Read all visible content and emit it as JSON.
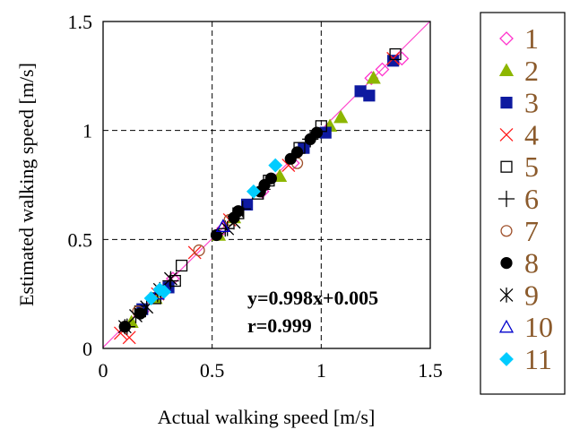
{
  "chart_data": {
    "type": "scatter",
    "xlabel": "Actual walking speed [m/s]",
    "ylabel": "Estimated walking speed [m/s]",
    "xlim": [
      0,
      1.5
    ],
    "ylim": [
      0,
      1.5
    ],
    "xticks": [
      "0",
      "0.5",
      "1",
      "1.5"
    ],
    "yticks": [
      "0",
      "0.5",
      "1",
      "1.5"
    ],
    "grid": "dashed",
    "legend_position": "right",
    "annotations": [
      "y=0.998x+0.005",
      "r=0.999"
    ],
    "fit_line": {
      "slope": 0.998,
      "intercept": 0.005,
      "color": "#ff44cc"
    },
    "series": [
      {
        "name": "1",
        "marker": "diamond-open",
        "color": "#ff33cc",
        "points": [
          [
            1.37,
            1.33
          ],
          [
            1.28,
            1.28
          ],
          [
            1.23,
            1.24
          ],
          [
            0.87,
            0.85
          ],
          [
            0.73,
            0.72
          ],
          [
            0.55,
            0.55
          ],
          [
            0.32,
            0.32
          ],
          [
            0.18,
            0.17
          ]
        ]
      },
      {
        "name": "2",
        "marker": "triangle-filled",
        "color": "#8db600",
        "points": [
          [
            1.24,
            1.24
          ],
          [
            1.09,
            1.06
          ],
          [
            1.04,
            1.02
          ],
          [
            0.81,
            0.79
          ],
          [
            0.6,
            0.6
          ],
          [
            0.53,
            0.52
          ],
          [
            0.24,
            0.23
          ],
          [
            0.13,
            0.12
          ]
        ]
      },
      {
        "name": "3",
        "marker": "square-filled",
        "color": "#0e1aa0",
        "points": [
          [
            1.33,
            1.32
          ],
          [
            1.22,
            1.16
          ],
          [
            1.18,
            1.18
          ],
          [
            1.02,
            0.99
          ],
          [
            0.92,
            0.92
          ],
          [
            0.66,
            0.66
          ],
          [
            0.3,
            0.28
          ],
          [
            0.18,
            0.18
          ]
        ]
      },
      {
        "name": "4",
        "marker": "x",
        "color": "#ff1a1a",
        "points": [
          [
            1.33,
            1.33
          ],
          [
            0.85,
            0.84
          ],
          [
            0.58,
            0.59
          ],
          [
            0.42,
            0.44
          ],
          [
            0.25,
            0.25
          ],
          [
            0.12,
            0.05
          ],
          [
            0.08,
            0.07
          ]
        ]
      },
      {
        "name": "5",
        "marker": "square-open",
        "color": "#000000",
        "points": [
          [
            1.34,
            1.35
          ],
          [
            1.0,
            1.02
          ],
          [
            0.9,
            0.92
          ],
          [
            0.76,
            0.77
          ],
          [
            0.71,
            0.71
          ],
          [
            0.62,
            0.62
          ],
          [
            0.36,
            0.38
          ],
          [
            0.33,
            0.31
          ],
          [
            0.24,
            0.23
          ],
          [
            0.17,
            0.17
          ]
        ]
      },
      {
        "name": "6",
        "marker": "plus",
        "color": "#000000",
        "points": [
          [
            0.95,
            0.96
          ],
          [
            0.73,
            0.73
          ],
          [
            0.64,
            0.64
          ],
          [
            0.56,
            0.55
          ],
          [
            0.31,
            0.31
          ],
          [
            0.25,
            0.25
          ],
          [
            0.11,
            0.1
          ]
        ]
      },
      {
        "name": "7",
        "marker": "circle-open",
        "color": "#a0522d",
        "points": [
          [
            0.89,
            0.85
          ],
          [
            0.58,
            0.59
          ],
          [
            0.44,
            0.45
          ],
          [
            0.16,
            0.17
          ],
          [
            0.1,
            0.1
          ]
        ]
      },
      {
        "name": "8",
        "marker": "circle-filled",
        "color": "#000000",
        "points": [
          [
            0.98,
            0.99
          ],
          [
            0.95,
            0.96
          ],
          [
            0.89,
            0.9
          ],
          [
            0.86,
            0.87
          ],
          [
            0.77,
            0.78
          ],
          [
            0.74,
            0.75
          ],
          [
            0.72,
            0.72
          ],
          [
            0.62,
            0.63
          ],
          [
            0.6,
            0.6
          ],
          [
            0.52,
            0.52
          ],
          [
            0.17,
            0.16
          ],
          [
            0.1,
            0.1
          ]
        ]
      },
      {
        "name": "9",
        "marker": "asterisk",
        "color": "#000000",
        "points": [
          [
            0.6,
            0.58
          ],
          [
            0.57,
            0.55
          ],
          [
            0.31,
            0.32
          ],
          [
            0.26,
            0.27
          ],
          [
            0.2,
            0.19
          ],
          [
            0.15,
            0.15
          ],
          [
            0.1,
            0.1
          ]
        ]
      },
      {
        "name": "10",
        "marker": "triangle-open",
        "color": "#0000cc",
        "points": [
          [
            0.55,
            0.56
          ],
          [
            0.25,
            0.25
          ]
        ]
      },
      {
        "name": "11",
        "marker": "diamond-filled",
        "color": "#00ccff",
        "points": [
          [
            0.79,
            0.84
          ],
          [
            0.69,
            0.72
          ],
          [
            0.28,
            0.26
          ],
          [
            0.26,
            0.27
          ],
          [
            0.22,
            0.23
          ]
        ]
      }
    ]
  }
}
